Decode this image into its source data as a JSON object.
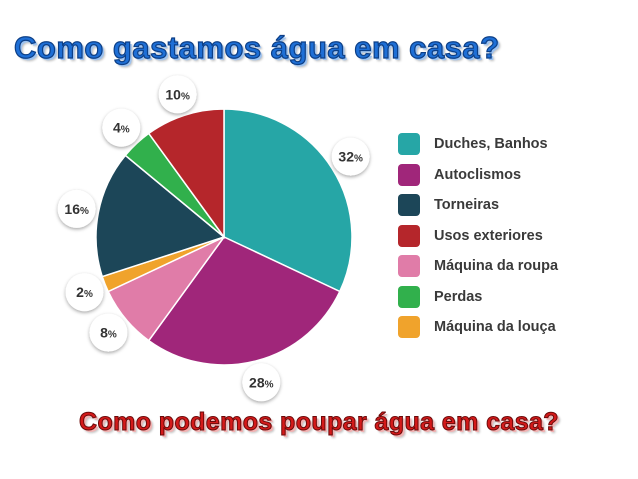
{
  "header": {
    "title": "Como gastamos água em casa?",
    "subtitle": "Como podemos poupar água em casa?"
  },
  "chart_data": {
    "type": "pie",
    "title": "Como gastamos água em casa?",
    "unit": "%",
    "slices": [
      {
        "name": "Duches, Banhos",
        "value": 32,
        "label": "32",
        "color": "#26a6a6"
      },
      {
        "name": "Autoclismos",
        "value": 28,
        "label": "28",
        "color": "#a0267a"
      },
      {
        "name": "Máquina da roupa",
        "value": 8,
        "label": "8",
        "color": "#e07ca8"
      },
      {
        "name": "Máquina da louça",
        "value": 2,
        "label": "2",
        "color": "#f0a32c"
      },
      {
        "name": "Torneiras",
        "value": 16,
        "label": "16",
        "color": "#1c4658"
      },
      {
        "name": "Perdas",
        "value": 4,
        "label": "4",
        "color": "#31b04c"
      },
      {
        "name": "Usos exteriores",
        "value": 10,
        "label": "10",
        "color": "#b5262b"
      }
    ],
    "legend": {
      "placement": "right",
      "entries": [
        {
          "name": "Duches, Banhos",
          "color": "#26a6a6"
        },
        {
          "name": "Autoclismos",
          "color": "#a0267a"
        },
        {
          "name": "Torneiras",
          "color": "#1c4658"
        },
        {
          "name": "Usos exteriores",
          "color": "#b5262b"
        },
        {
          "name": "Máquina da roupa",
          "color": "#e07ca8"
        },
        {
          "name": "Perdas",
          "color": "#31b04c"
        },
        {
          "name": "Máquina da louça",
          "color": "#f0a32c"
        }
      ]
    }
  }
}
